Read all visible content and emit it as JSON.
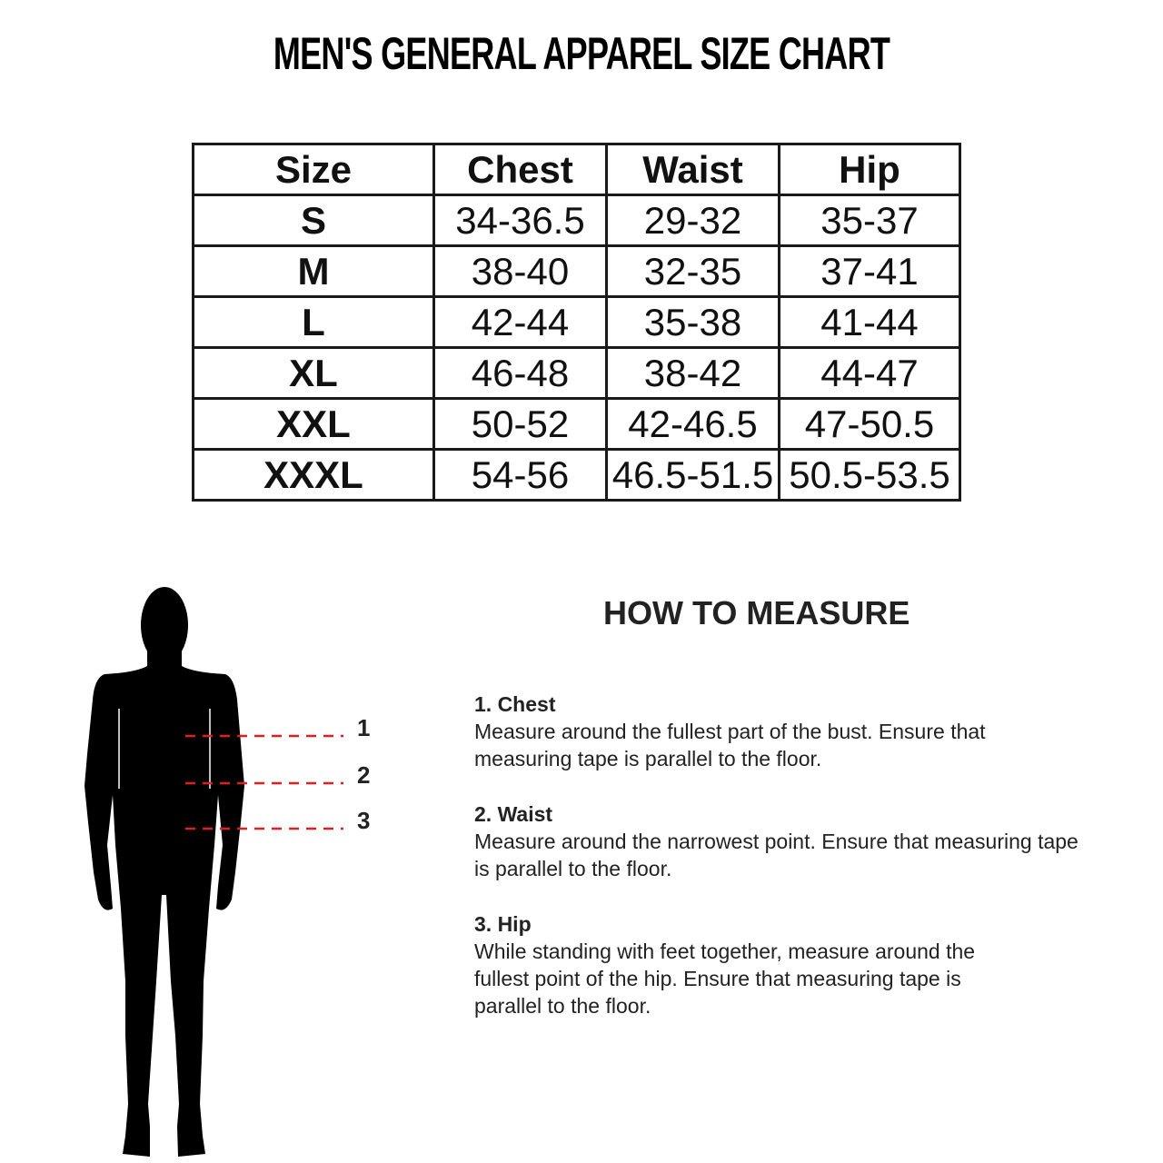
{
  "title": "MEN'S  GENERAL APPAREL SIZE CHART",
  "table": {
    "headers": [
      "Size",
      "Chest",
      "Waist",
      "Hip"
    ],
    "rows": [
      [
        "S",
        "34-36.5",
        "29-32",
        "35-37"
      ],
      [
        "M",
        "38-40",
        "32-35",
        "37-41"
      ],
      [
        "L",
        "42-44",
        "35-38",
        "41-44"
      ],
      [
        "XL",
        "46-48",
        "38-42",
        "44-47"
      ],
      [
        "XXL",
        "50-52",
        "42-46.5",
        "47-50.5"
      ],
      [
        "XXXL",
        "54-56",
        "46.5-51.5",
        "50.5-53.5"
      ]
    ]
  },
  "how_to_measure": {
    "heading": "HOW TO MEASURE",
    "markers": [
      "1",
      "2",
      "3"
    ],
    "steps": [
      {
        "title": "1. Chest",
        "text": "Measure around the fullest part of the bust. Ensure that measuring tape is parallel to the floor."
      },
      {
        "title": "2. Waist",
        "text": "Measure around the narrowest point. Ensure that measuring tape is parallel to the floor."
      },
      {
        "title": "3. Hip",
        "text": "While standing with feet together, measure around the fullest point of the hip. Ensure that measuring tape is parallel to the floor."
      }
    ]
  },
  "colors": {
    "measure_line": "#e02020",
    "silhouette": "#000000"
  }
}
